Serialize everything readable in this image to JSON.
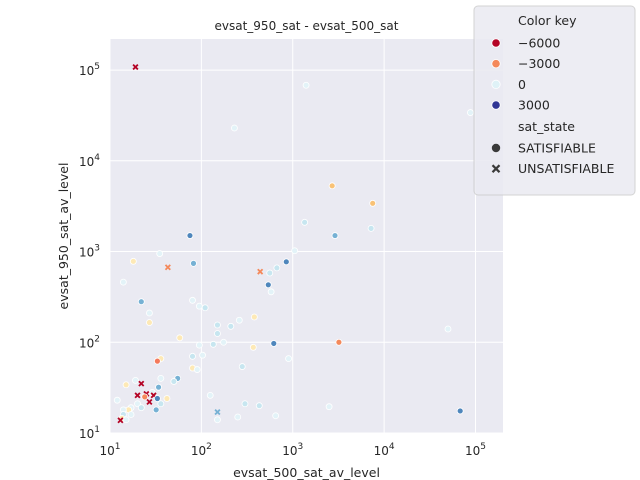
{
  "chart_data": {
    "type": "scatter",
    "title": "evsat_950_sat - evsat_500_sat",
    "xlabel": "evsat_500_sat_av_level",
    "ylabel": "evsat_950_sat_av_level",
    "xscale": "log",
    "yscale": "log",
    "xlim": [
      10,
      200000
    ],
    "ylim": [
      10,
      220000
    ],
    "xticks": [
      {
        "value": 10,
        "base": "10",
        "exp": "1"
      },
      {
        "value": 100,
        "base": "10",
        "exp": "2"
      },
      {
        "value": 1000,
        "base": "10",
        "exp": "3"
      },
      {
        "value": 10000,
        "base": "10",
        "exp": "4"
      },
      {
        "value": 100000,
        "base": "10",
        "exp": "5"
      }
    ],
    "yticks": [
      {
        "value": 10,
        "base": "10",
        "exp": "1"
      },
      {
        "value": 100,
        "base": "10",
        "exp": "2"
      },
      {
        "value": 1000,
        "base": "10",
        "exp": "3"
      },
      {
        "value": 10000,
        "base": "10",
        "exp": "4"
      },
      {
        "value": 100000,
        "base": "10",
        "exp": "5"
      }
    ],
    "grid": true,
    "background": "#eaeaf2",
    "legend": {
      "placement": "top-right",
      "color_title": "Color key",
      "color_entries": [
        {
          "label": "−6000",
          "color": "#b40426"
        },
        {
          "label": "−3000",
          "color": "#f4895b"
        },
        {
          "label": "0",
          "color": "#dff2f7"
        },
        {
          "label": "3000",
          "color": "#313695"
        }
      ],
      "shape_title": "sat_state",
      "shape_entries": [
        {
          "label": "SATISFIABLE",
          "marker": "circle"
        },
        {
          "label": "UNSATISFIABLE",
          "marker": "x"
        }
      ]
    },
    "points": [
      {
        "x": 19,
        "y": 108000,
        "m": "x",
        "c": "#b40426"
      },
      {
        "x": 1400,
        "y": 68000,
        "m": "o",
        "c": "#e3f3f8"
      },
      {
        "x": 230,
        "y": 23000,
        "m": "o",
        "c": "#e3f3f8"
      },
      {
        "x": 88000,
        "y": 34000,
        "m": "o",
        "c": "#e3f3f8"
      },
      {
        "x": 2700,
        "y": 5300,
        "m": "o",
        "c": "#f9c276"
      },
      {
        "x": 7500,
        "y": 3400,
        "m": "o",
        "c": "#f9c276"
      },
      {
        "x": 1350,
        "y": 2100,
        "m": "o",
        "c": "#c7e6f0"
      },
      {
        "x": 7200,
        "y": 1800,
        "m": "o",
        "c": "#c7e6f0"
      },
      {
        "x": 75,
        "y": 1500,
        "m": "o",
        "c": "#4e86bc"
      },
      {
        "x": 2900,
        "y": 1500,
        "m": "o",
        "c": "#76b1d4"
      },
      {
        "x": 1050,
        "y": 1020,
        "m": "o",
        "c": "#e3f3f8"
      },
      {
        "x": 35,
        "y": 950,
        "m": "o",
        "c": "#e3f3f8"
      },
      {
        "x": 18,
        "y": 780,
        "m": "o",
        "c": "#fde9b6"
      },
      {
        "x": 82,
        "y": 740,
        "m": "o",
        "c": "#76b1d4"
      },
      {
        "x": 850,
        "y": 770,
        "m": "o",
        "c": "#4e86bc"
      },
      {
        "x": 43,
        "y": 670,
        "m": "x",
        "c": "#f4895b"
      },
      {
        "x": 440,
        "y": 600,
        "m": "x",
        "c": "#f4895b"
      },
      {
        "x": 670,
        "y": 660,
        "m": "o",
        "c": "#c7e6f0"
      },
      {
        "x": 560,
        "y": 580,
        "m": "o",
        "c": "#c7e6f0"
      },
      {
        "x": 14,
        "y": 460,
        "m": "o",
        "c": "#e3f3f8"
      },
      {
        "x": 540,
        "y": 430,
        "m": "o",
        "c": "#4e86bc"
      },
      {
        "x": 580,
        "y": 360,
        "m": "o",
        "c": "#e3f3f8"
      },
      {
        "x": 22,
        "y": 280,
        "m": "o",
        "c": "#76b1d4"
      },
      {
        "x": 80,
        "y": 290,
        "m": "o",
        "c": "#e3f3f8"
      },
      {
        "x": 95,
        "y": 250,
        "m": "o",
        "c": "#e3f3f8"
      },
      {
        "x": 110,
        "y": 240,
        "m": "o",
        "c": "#c7e6f0"
      },
      {
        "x": 27,
        "y": 210,
        "m": "o",
        "c": "#e3f3f8"
      },
      {
        "x": 380,
        "y": 190,
        "m": "o",
        "c": "#fde9b6"
      },
      {
        "x": 260,
        "y": 175,
        "m": "o",
        "c": "#e3f3f8"
      },
      {
        "x": 27,
        "y": 165,
        "m": "o",
        "c": "#fde9b6"
      },
      {
        "x": 150,
        "y": 155,
        "m": "o",
        "c": "#c7e6f0"
      },
      {
        "x": 210,
        "y": 150,
        "m": "o",
        "c": "#c7e6f0"
      },
      {
        "x": 50000,
        "y": 140,
        "m": "o",
        "c": "#e3f3f8"
      },
      {
        "x": 150,
        "y": 125,
        "m": "o",
        "c": "#c7e6f0"
      },
      {
        "x": 58,
        "y": 112,
        "m": "o",
        "c": "#fde9b6"
      },
      {
        "x": 3200,
        "y": 100,
        "m": "o",
        "c": "#f4895b"
      },
      {
        "x": 620,
        "y": 97,
        "m": "o",
        "c": "#4e86bc"
      },
      {
        "x": 175,
        "y": 100,
        "m": "o",
        "c": "#e3f3f8"
      },
      {
        "x": 135,
        "y": 95,
        "m": "o",
        "c": "#c7e6f0"
      },
      {
        "x": 370,
        "y": 88,
        "m": "o",
        "c": "#fde9b6"
      },
      {
        "x": 95,
        "y": 93,
        "m": "o",
        "c": "#e3f3f8"
      },
      {
        "x": 103,
        "y": 72,
        "m": "o",
        "c": "#e3f3f8"
      },
      {
        "x": 80,
        "y": 70,
        "m": "o",
        "c": "#c7e6f0"
      },
      {
        "x": 900,
        "y": 66,
        "m": "o",
        "c": "#e3f3f8"
      },
      {
        "x": 36,
        "y": 66,
        "m": "o",
        "c": "#fde9b6"
      },
      {
        "x": 33,
        "y": 62,
        "m": "o",
        "c": "#f4795b"
      },
      {
        "x": 280,
        "y": 54,
        "m": "o",
        "c": "#c7e6f0"
      },
      {
        "x": 80,
        "y": 52,
        "m": "o",
        "c": "#fde9b6"
      },
      {
        "x": 90,
        "y": 50,
        "m": "o",
        "c": "#e3f3f8"
      },
      {
        "x": 55,
        "y": 40,
        "m": "o",
        "c": "#76b1d4"
      },
      {
        "x": 36,
        "y": 40,
        "m": "o",
        "c": "#e3f3f8"
      },
      {
        "x": 50,
        "y": 37,
        "m": "o",
        "c": "#c7e6f0"
      },
      {
        "x": 19,
        "y": 38,
        "m": "o",
        "c": "#e3f3f8"
      },
      {
        "x": 15,
        "y": 34,
        "m": "o",
        "c": "#fde9b6"
      },
      {
        "x": 22,
        "y": 35,
        "m": "x",
        "c": "#b40426"
      },
      {
        "x": 34,
        "y": 32,
        "m": "o",
        "c": "#76b1d4"
      },
      {
        "x": 29,
        "y": 28,
        "m": "o",
        "c": "#e3f3f8"
      },
      {
        "x": 25,
        "y": 27,
        "m": "x",
        "c": "#b40426"
      },
      {
        "x": 20,
        "y": 26,
        "m": "x",
        "c": "#b40426"
      },
      {
        "x": 30,
        "y": 26,
        "m": "x",
        "c": "#b40426"
      },
      {
        "x": 125,
        "y": 26,
        "m": "o",
        "c": "#e3f3f8"
      },
      {
        "x": 24,
        "y": 25,
        "m": "o",
        "c": "#f4895b"
      },
      {
        "x": 42,
        "y": 24,
        "m": "o",
        "c": "#fde9b6"
      },
      {
        "x": 33,
        "y": 24,
        "m": "o",
        "c": "#4e86bc"
      },
      {
        "x": 12,
        "y": 23,
        "m": "o",
        "c": "#e3f3f8"
      },
      {
        "x": 27,
        "y": 22,
        "m": "x",
        "c": "#b40426"
      },
      {
        "x": 36,
        "y": 21,
        "m": "o",
        "c": "#c7e6f0"
      },
      {
        "x": 20,
        "y": 21,
        "m": "o",
        "c": "#e3f3f8"
      },
      {
        "x": 300,
        "y": 21,
        "m": "o",
        "c": "#c7e6f0"
      },
      {
        "x": 430,
        "y": 20,
        "m": "o",
        "c": "#c7e6f0"
      },
      {
        "x": 2500,
        "y": 19.5,
        "m": "o",
        "c": "#e3f3f8"
      },
      {
        "x": 22,
        "y": 19,
        "m": "o",
        "c": "#c7e6f0"
      },
      {
        "x": 17,
        "y": 19,
        "m": "o",
        "c": "#e3f3f8"
      },
      {
        "x": 16,
        "y": 18,
        "m": "o",
        "c": "#fde9b6"
      },
      {
        "x": 14,
        "y": 18,
        "m": "o",
        "c": "#e3f3f8"
      },
      {
        "x": 32,
        "y": 18,
        "m": "o",
        "c": "#76b1d4"
      },
      {
        "x": 68000,
        "y": 17.5,
        "m": "o",
        "c": "#4e86bc"
      },
      {
        "x": 150,
        "y": 17,
        "m": "x",
        "c": "#76b1d4"
      },
      {
        "x": 14,
        "y": 16,
        "m": "o",
        "c": "#c7e6f0"
      },
      {
        "x": 17,
        "y": 16,
        "m": "o",
        "c": "#e3f3f8"
      },
      {
        "x": 650,
        "y": 15.5,
        "m": "o",
        "c": "#e3f3f8"
      },
      {
        "x": 250,
        "y": 15,
        "m": "o",
        "c": "#e3f3f8"
      },
      {
        "x": 13.5,
        "y": 14.5,
        "m": "o",
        "c": "#fde9b6"
      },
      {
        "x": 15,
        "y": 14,
        "m": "o",
        "c": "#e3f3f8"
      },
      {
        "x": 13,
        "y": 13.8,
        "m": "x",
        "c": "#b40426"
      },
      {
        "x": 150,
        "y": 14,
        "m": "o",
        "c": "#e3f3f8"
      }
    ]
  }
}
